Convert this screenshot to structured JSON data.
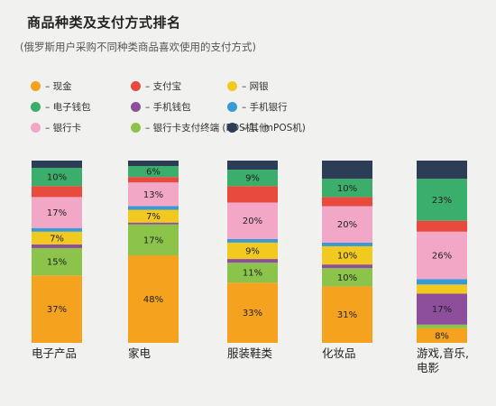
{
  "title": "商品种类及支付方式排名",
  "subtitle": "(俄罗斯用户采购不同种类商品喜欢使用的支付方式)",
  "legend": [
    {
      "label": "– 现金",
      "color": "#f5a21f"
    },
    {
      "label": "– 电子钱包",
      "color": "#3aae6a"
    },
    {
      "label": "– 银行卡",
      "color": "#f2a7c6"
    },
    {
      "label": "– 支付宝",
      "color": "#e84a3d"
    },
    {
      "label": "– 手机钱包",
      "color": "#8d4f9b"
    },
    {
      "label": "– 银行卡支付终端 (POS机、mPOS机)",
      "color": "#8cc34a"
    },
    {
      "label": "– 网银",
      "color": "#f2c91f"
    },
    {
      "label": "– 手机银行",
      "color": "#3a9ad6"
    },
    {
      "label": "– 其他",
      "color": "#2c3e55"
    }
  ],
  "chart_data": {
    "type": "bar",
    "stacked": true,
    "normalized": true,
    "categories": [
      "电子产品",
      "家电",
      "服装鞋类",
      "化妆品",
      "游戏,音乐,电影"
    ],
    "series": [
      {
        "name": "现金",
        "color": "#f5a21f",
        "values": [
          37,
          48,
          33,
          31,
          8
        ]
      },
      {
        "name": "银行卡支付终端 (POS机、mPOS机)",
        "color": "#8cc34a",
        "values": [
          15,
          17,
          11,
          10,
          2
        ]
      },
      {
        "name": "手机钱包",
        "color": "#8d4f9b",
        "values": [
          2,
          1,
          2,
          2,
          17
        ]
      },
      {
        "name": "网银",
        "color": "#f2c91f",
        "values": [
          7,
          7,
          9,
          10,
          5
        ]
      },
      {
        "name": "手机银行",
        "color": "#3a9ad6",
        "values": [
          2,
          2,
          2,
          2,
          3
        ]
      },
      {
        "name": "银行卡",
        "color": "#f2a7c6",
        "values": [
          17,
          13,
          20,
          20,
          26
        ]
      },
      {
        "name": "支付宝",
        "color": "#e84a3d",
        "values": [
          6,
          3,
          9,
          5,
          6
        ]
      },
      {
        "name": "电子钱包",
        "color": "#3aae6a",
        "values": [
          10,
          6,
          9,
          10,
          23
        ]
      },
      {
        "name": "其他",
        "color": "#2c3e55",
        "values": [
          4,
          3,
          5,
          10,
          10
        ]
      }
    ],
    "data_labels": {
      "现金": [
        "37%",
        "48%",
        "33%",
        "31%",
        "8%"
      ],
      "银行卡支付终端 (POS机、mPOS机)": [
        "15%",
        "17%",
        "11%",
        "10%",
        ""
      ],
      "手机钱包": [
        "",
        "",
        "",
        "",
        "17%"
      ],
      "网银": [
        "7%",
        "7%",
        "9%",
        "10%",
        ""
      ],
      "手机银行": [
        "",
        "",
        "",
        "",
        ""
      ],
      "银行卡": [
        "17%",
        "13%",
        "20%",
        "20%",
        "26%"
      ],
      "支付宝": [
        "",
        "",
        "",
        "",
        ""
      ],
      "电子钱包": [
        "10%",
        "6%",
        "9%",
        "10%",
        "23%"
      ],
      "其他": [
        "",
        "",
        "",
        "",
        ""
      ]
    },
    "category_labels": [
      "电子产品",
      "家电",
      "服装鞋类",
      "化妆品",
      "游戏,音乐,\n电影"
    ],
    "ylim": [
      0,
      100
    ]
  }
}
